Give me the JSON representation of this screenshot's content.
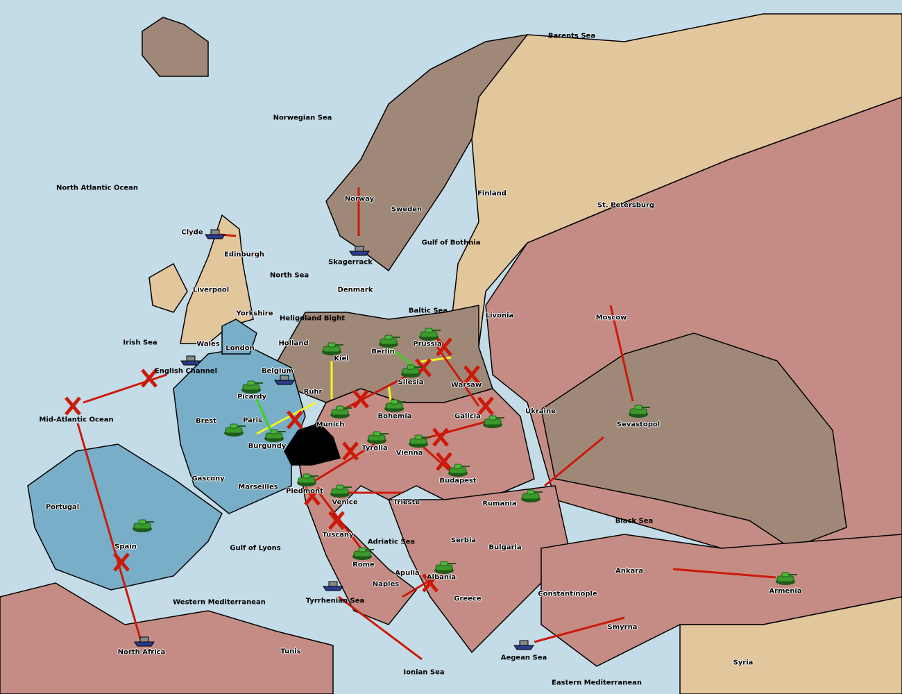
{
  "map": {
    "colors": {
      "sea": "#c4dce8",
      "russia_pink": "#c48c84",
      "tan": "#e2c69c",
      "brown": "#a08878",
      "blue": "#78aec8",
      "order_red": "#cc1a0a",
      "order_yellow": "#f5f520",
      "order_green": "#40d020",
      "unit_green": "#3a9a2a"
    },
    "sea_labels": [
      "Barents Sea",
      "Norwegian Sea",
      "North Atlantic Ocean",
      "North Sea",
      "Irish Sea",
      "English Channel",
      "Mid-Atlantic Ocean",
      "Heligoland Bight",
      "Skagerrack",
      "Gulf of Bothnia",
      "Baltic Sea",
      "Gulf of Lyons",
      "Western Mediterranean",
      "Tyrrhenian Sea",
      "Adriatic Sea",
      "Ionian Sea",
      "Aegean Sea",
      "Eastern Mediterranean",
      "Black Sea"
    ],
    "land_labels": [
      "Clyde",
      "Edinburgh",
      "Liverpool",
      "Yorkshire",
      "Wales",
      "London",
      "Norway",
      "Sweden",
      "Finland",
      "St. Petersburg",
      "Denmark",
      "Holland",
      "Belgium",
      "Kiel",
      "Berlin",
      "Prussia",
      "Silesia",
      "Warsaw",
      "Livonia",
      "Moscow",
      "Ruhr",
      "Munich",
      "Bohemia",
      "Galicia",
      "Ukraine",
      "Sevastopol",
      "Picardy",
      "Paris",
      "Brest",
      "Burgundy",
      "Gascony",
      "Marseilles",
      "Piedmont",
      "Tyrolia",
      "Vienna",
      "Budapest",
      "Venice",
      "Trieste",
      "Rumania",
      "Tuscany",
      "Rome",
      "Apulia",
      "Naples",
      "Serbia",
      "Bulgaria",
      "Albania",
      "Greece",
      "Constantinople",
      "Ankara",
      "Armenia",
      "Smyrna",
      "Syria",
      "Portugal",
      "Spain",
      "North Africa",
      "Tunis"
    ],
    "units": {
      "armies": [
        "Kiel",
        "Berlin",
        "Prussia",
        "Silesia",
        "Bohemia",
        "Munich",
        "Picardy",
        "Paris",
        "Burgundy",
        "Tyrolia",
        "Vienna",
        "Galicia",
        "Budapest",
        "Piedmont",
        "Venice",
        "Rome",
        "Albania",
        "Rumania",
        "Sevastopol",
        "Armenia",
        "Spain"
      ],
      "fleets": [
        "Clyde",
        "Skagerrack",
        "Belgium",
        "English Channel",
        "North Africa",
        "Tyrrhenian Sea",
        "Aegean Sea"
      ]
    }
  }
}
